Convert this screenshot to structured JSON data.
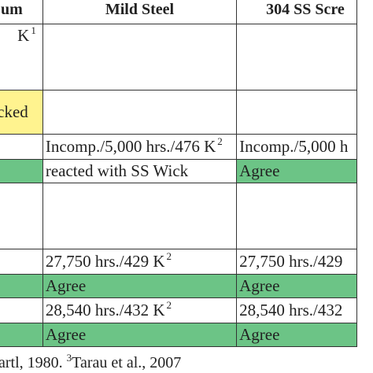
{
  "headers": {
    "col0": "um",
    "col1": "Mild Steel",
    "col2": "304 SS Scre"
  },
  "rows": [
    {
      "c0": "K",
      "c0_sup": "1",
      "c1": "",
      "c2": ""
    },
    {
      "c0": "tacked",
      "c1": "",
      "c2": ""
    },
    {
      "c0": "",
      "c1": "Incomp./5,000 hrs./476 K",
      "c1_sup": "2",
      "c2": "Incomp./5,000 h"
    },
    {
      "c0": "",
      "c1": "reacted with SS Wick",
      "c2": "Agree"
    },
    {
      "c0": "",
      "c1": "",
      "c2": ""
    },
    {
      "c0": "",
      "c1": "27,750 hrs./429 K",
      "c1_sup": "2",
      "c2": "27,750 hrs./429"
    },
    {
      "c0": "",
      "c1": "Agree",
      "c2": "Agree"
    },
    {
      "c0": "",
      "c1": "28,540 hrs./432 K",
      "c1_sup": "2",
      "c2": "28,540 hrs./432"
    },
    {
      "c0": "",
      "c1": "Agree",
      "c2": "Agree"
    }
  ],
  "footnote": {
    "lead": "artl, 1980.  ",
    "sup": "3",
    "text": "Tarau et al., 2007"
  },
  "colors": {
    "agree_green": "#6cc486",
    "attacked_yellow": "#fff38f",
    "border": "#333333"
  }
}
